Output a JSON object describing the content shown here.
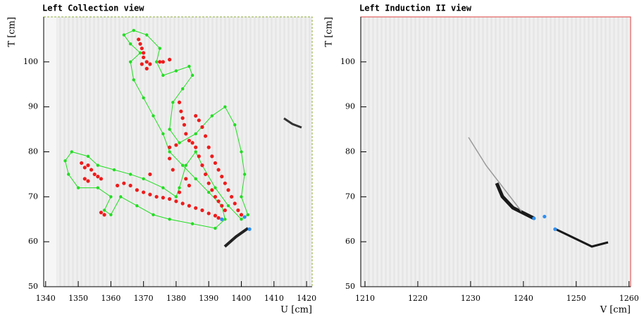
{
  "chart_data": [
    {
      "type": "scatter",
      "title": "Left Collection view",
      "x_label": "U [cm]",
      "y_label": "T [cm]",
      "xlim": [
        1339.4,
        1421.7
      ],
      "ylim": [
        50,
        110
      ],
      "xticks": [
        1340,
        1350,
        1360,
        1370,
        1380,
        1390,
        1400,
        1410,
        1420
      ],
      "yticks": [
        50,
        60,
        70,
        80,
        90,
        100
      ],
      "frame_color": "#8fae3a",
      "series": [
        {
          "color": "#22dd22",
          "closed_line": true,
          "x": [
            1367,
            1371,
            1375,
            1374,
            1376,
            1380,
            1384,
            1385,
            1382,
            1379,
            1378,
            1381,
            1386,
            1391,
            1395,
            1398,
            1400,
            1401,
            1400,
            1402,
            1400,
            1396,
            1392,
            1388,
            1386,
            1383,
            1381,
            1380,
            1376,
            1370,
            1366,
            1361,
            1356,
            1353,
            1348,
            1346,
            1347,
            1350,
            1356,
            1360,
            1358,
            1360,
            1363,
            1368,
            1373,
            1378,
            1385,
            1392,
            1395,
            1394,
            1390,
            1386,
            1382,
            1378,
            1376,
            1373,
            1370,
            1367,
            1366,
            1369,
            1366,
            1364
          ],
          "values": [
            107,
            106,
            103,
            100,
            97,
            98,
            99,
            97,
            94,
            91,
            85,
            82,
            84,
            88,
            90,
            86,
            80,
            75,
            70,
            66,
            65,
            68,
            72,
            77,
            80,
            77,
            72,
            70,
            72,
            74,
            75,
            76,
            77,
            79,
            80,
            78,
            75,
            72,
            72,
            70,
            67,
            66,
            70,
            68,
            66,
            65,
            64,
            63,
            65,
            68,
            71,
            74,
            77,
            80,
            84,
            88,
            92,
            96,
            100,
            102,
            104,
            106
          ]
        },
        {
          "color": "#ee1c1c",
          "x": [
            1368.5,
            1369,
            1369.5,
            1370,
            1370,
            1371,
            1372,
            1371,
            1369.5,
            1375,
            1376,
            1378,
            1381,
            1381.5,
            1382,
            1382.5,
            1383,
            1384,
            1385,
            1386,
            1387,
            1388,
            1389,
            1390,
            1391,
            1392,
            1393,
            1394,
            1395,
            1386,
            1387,
            1388,
            1389,
            1390,
            1391,
            1392,
            1393,
            1394,
            1395,
            1396,
            1397,
            1398,
            1399,
            1400,
            1362,
            1364,
            1366,
            1368,
            1370,
            1372,
            1374,
            1376,
            1378,
            1380,
            1382,
            1384,
            1386,
            1388,
            1390,
            1392,
            1393,
            1351,
            1352,
            1353,
            1354,
            1355,
            1356,
            1357,
            1352,
            1353,
            1357,
            1358,
            1378,
            1378,
            1379,
            1372,
            1383,
            1384,
            1381,
            1380
          ],
          "values": [
            105,
            104,
            103,
            102,
            101,
            100,
            99.5,
            98.5,
            99.5,
            100,
            100,
            100.5,
            91,
            89,
            87.5,
            86,
            84,
            82.5,
            82,
            81,
            79,
            77,
            75,
            73,
            71.5,
            70,
            69,
            68,
            67,
            88,
            87,
            85.5,
            83.5,
            81,
            79,
            77.5,
            76,
            74.5,
            73,
            71.5,
            70,
            68.5,
            67,
            66,
            72.5,
            73,
            72.5,
            71.5,
            71,
            70.5,
            70,
            69.8,
            69.5,
            69,
            68.5,
            68,
            67.5,
            67,
            66.3,
            65.8,
            65.3,
            77.5,
            76.5,
            77,
            76,
            75,
            74.5,
            74,
            74,
            73.5,
            66.5,
            66,
            81,
            78.5,
            76,
            75,
            74,
            72.5,
            71,
            81.5
          ]
        },
        {
          "color": "#2f8ff0",
          "x": [
            1394,
            1401,
            1402.5
          ],
          "values": [
            65,
            65.5,
            62.8
          ]
        }
      ]
    },
    {
      "type": "scatter",
      "title": "Left Induction II view",
      "x_label": "V [cm]",
      "y_label": "T [cm]",
      "xlim": [
        1209.2,
        1260.3
      ],
      "ylim": [
        50,
        110
      ],
      "xticks": [
        1210,
        1220,
        1230,
        1240,
        1250,
        1260
      ],
      "yticks": [
        50,
        60,
        70,
        80,
        90,
        100
      ],
      "frame_color": "#e04040",
      "series": [
        {
          "color": "#2f8ff0",
          "x": [
            1242,
            1244,
            1246
          ],
          "values": [
            65.2,
            65.6,
            62.8
          ]
        }
      ]
    }
  ]
}
